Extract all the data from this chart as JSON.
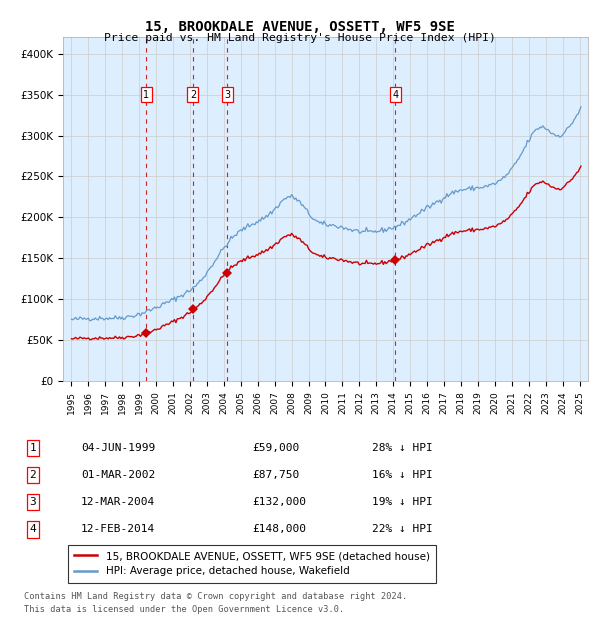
{
  "title": "15, BROOKDALE AVENUE, OSSETT, WF5 9SE",
  "subtitle": "Price paid vs. HM Land Registry's House Price Index (HPI)",
  "legend_line1": "15, BROOKDALE AVENUE, OSSETT, WF5 9SE (detached house)",
  "legend_line2": "HPI: Average price, detached house, Wakefield",
  "footer_line1": "Contains HM Land Registry data © Crown copyright and database right 2024.",
  "footer_line2": "This data is licensed under the Open Government Licence v3.0.",
  "transactions": [
    {
      "num": 1,
      "date": "04-JUN-1999",
      "price": 59000,
      "pct": "28% ↓ HPI",
      "year_x": 1999.42
    },
    {
      "num": 2,
      "date": "01-MAR-2002",
      "price": 87750,
      "pct": "16% ↓ HPI",
      "year_x": 2002.17
    },
    {
      "num": 3,
      "date": "12-MAR-2004",
      "price": 132000,
      "pct": "19% ↓ HPI",
      "year_x": 2004.19
    },
    {
      "num": 4,
      "date": "12-FEB-2014",
      "price": 148000,
      "pct": "22% ↓ HPI",
      "year_x": 2014.12
    }
  ],
  "price_labels": [
    "£59,000",
    "£87,750",
    "£132,000",
    "£148,000"
  ],
  "hpi_color": "#6699cc",
  "price_paid_color": "#cc0000",
  "dashed_line_color": "#cc0000",
  "shade_color": "#ddeeff",
  "background_color": "#ffffff",
  "grid_color": "#cccccc",
  "ylim": [
    0,
    420000
  ],
  "yticks": [
    0,
    50000,
    100000,
    150000,
    200000,
    250000,
    300000,
    350000,
    400000
  ],
  "ytick_labels": [
    "£0",
    "£50K",
    "£100K",
    "£150K",
    "£200K",
    "£250K",
    "£300K",
    "£350K",
    "£400K"
  ],
  "xlim_start": 1994.5,
  "xlim_end": 2025.5,
  "xtick_years": [
    1995,
    1996,
    1997,
    1998,
    1999,
    2000,
    2001,
    2002,
    2003,
    2004,
    2005,
    2006,
    2007,
    2008,
    2009,
    2010,
    2011,
    2012,
    2013,
    2014,
    2015,
    2016,
    2017,
    2018,
    2019,
    2020,
    2021,
    2022,
    2023,
    2024,
    2025
  ]
}
